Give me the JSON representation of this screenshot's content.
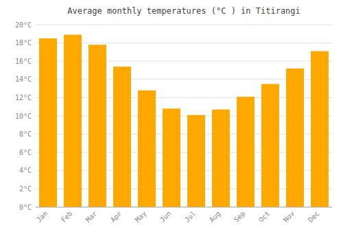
{
  "chart_data": {
    "type": "bar",
    "title": "Average monthly temperatures (°C ) in Titirangi",
    "categories": [
      "Jan",
      "Feb",
      "Mar",
      "Apr",
      "May",
      "Jun",
      "Jul",
      "Aug",
      "Sep",
      "Oct",
      "Nov",
      "Dec"
    ],
    "values": [
      18.5,
      18.9,
      17.8,
      15.4,
      12.8,
      10.8,
      10.1,
      10.7,
      12.1,
      13.5,
      15.2,
      17.1
    ],
    "color": "#FFA800",
    "ylim": [
      0,
      20
    ],
    "yticks": [
      {
        "value": 0,
        "label": "0°C"
      },
      {
        "value": 2,
        "label": "2°C"
      },
      {
        "value": 4,
        "label": "4°C"
      },
      {
        "value": 6,
        "label": "6°C"
      },
      {
        "value": 8,
        "label": "8°C"
      },
      {
        "value": 10,
        "label": "10°C"
      },
      {
        "value": 12,
        "label": "12°C"
      },
      {
        "value": 14,
        "label": "14°C"
      },
      {
        "value": 16,
        "label": "16°C"
      },
      {
        "value": 18,
        "label": "18°C"
      },
      {
        "value": 20,
        "label": "20°C"
      }
    ],
    "grid": true
  }
}
